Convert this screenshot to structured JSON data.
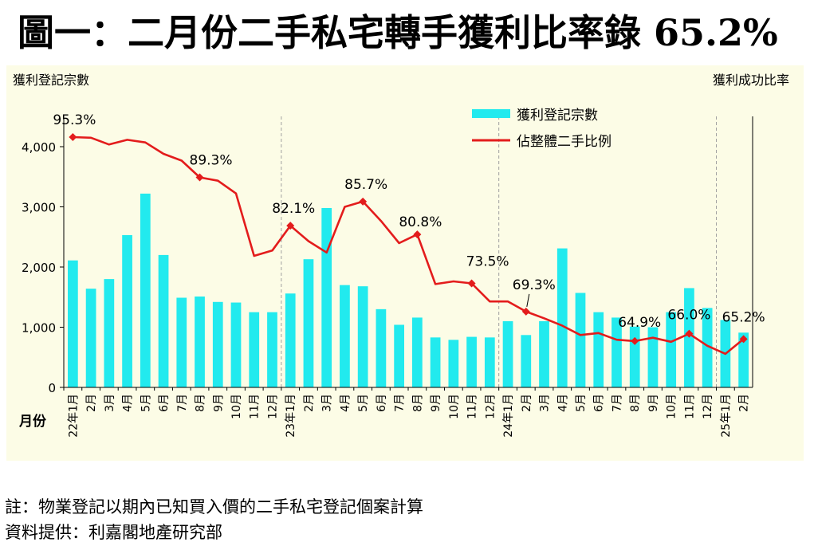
{
  "title": "圖一：二月份二手私宅轉手獲利比率錄 65.2%",
  "notes": {
    "note": "註：物業登記以期內已知買入價的二手私宅登記個案計算",
    "source": "資料提供：利嘉閣地產研究部"
  },
  "colors": {
    "bars": "#22eaee",
    "line": "#e31c1c",
    "marker": "#e31c1c",
    "background": "#fcfce6",
    "divider": "#a0a0a0"
  },
  "chart_data": {
    "type": "bar+line",
    "ylabel": "獲利登記宗數",
    "y2label": "獲利成功比率",
    "xlabel": "月份",
    "ylim": [
      0,
      4000
    ],
    "yticks": [
      0,
      1000,
      2000,
      3000,
      4000
    ],
    "ytick_labels": [
      "0",
      "1,000",
      "2,000",
      "3,000",
      "4,000"
    ],
    "y2lim": [
      0,
      100
    ],
    "legend_position": "top-center",
    "categories": [
      "22年1月",
      "2月",
      "3月",
      "4月",
      "5月",
      "6月",
      "7月",
      "8月",
      "9月",
      "10月",
      "11月",
      "12月",
      "23年1月",
      "2月",
      "3月",
      "4月",
      "5月",
      "6月",
      "7月",
      "8月",
      "9月",
      "10月",
      "11月",
      "12月",
      "24年1月",
      "2月",
      "3月",
      "4月",
      "5月",
      "6月",
      "7月",
      "8月",
      "9月",
      "10月",
      "11月",
      "12月",
      "25年1月",
      "2月"
    ],
    "year_dividers_after_index": [
      11,
      23,
      35
    ],
    "series": [
      {
        "name": "獲利登記宗數",
        "type": "bar",
        "axis": "left",
        "values": [
          2110,
          1640,
          1800,
          2530,
          3220,
          2200,
          1490,
          1510,
          1420,
          1410,
          1250,
          1250,
          1560,
          2130,
          2980,
          1700,
          1680,
          1300,
          1040,
          1160,
          830,
          790,
          840,
          830,
          1100,
          870,
          1100,
          2310,
          1570,
          1250,
          1160,
          1010,
          1000,
          1250,
          1650,
          1320,
          1120,
          910
        ]
      },
      {
        "name": "佔整體二手比例",
        "type": "line",
        "axis": "right",
        "values": [
          95.3,
          95.2,
          94.2,
          94.9,
          94.5,
          92.8,
          91.8,
          89.3,
          88.8,
          86.9,
          77.6,
          78.4,
          82.1,
          79.8,
          78.1,
          84.9,
          85.7,
          82.8,
          79.5,
          80.8,
          73.4,
          73.8,
          73.5,
          70.8,
          70.8,
          69.3,
          68.3,
          67.2,
          65.8,
          66.1,
          65.1,
          64.9,
          65.4,
          64.8,
          66.0,
          64.2,
          63.0,
          65.2
        ]
      }
    ],
    "annotations": [
      {
        "index": 0,
        "label": "95.3%"
      },
      {
        "index": 7,
        "label": "89.3%"
      },
      {
        "index": 12,
        "label": "82.1%"
      },
      {
        "index": 16,
        "label": "85.7%"
      },
      {
        "index": 19,
        "label": "80.8%"
      },
      {
        "index": 22,
        "label": "73.5%"
      },
      {
        "index": 25,
        "label": "69.3%"
      },
      {
        "index": 31,
        "label": "64.9%"
      },
      {
        "index": 34,
        "label": "66.0%"
      },
      {
        "index": 37,
        "label": "65.2%"
      }
    ]
  }
}
